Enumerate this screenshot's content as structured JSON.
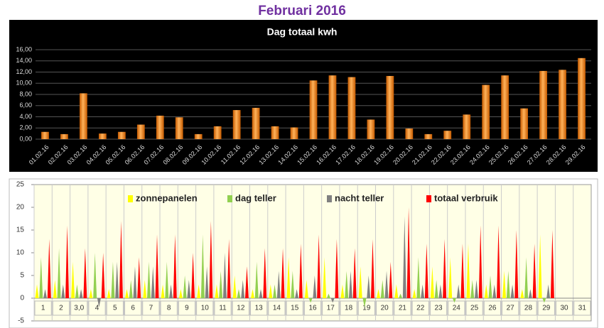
{
  "title": "Februari 2016",
  "chart_data": [
    {
      "type": "bar",
      "title": "Dag totaal kwh",
      "categories": [
        "01.02.16",
        "02.02.16",
        "03.02.16",
        "04.02.16",
        "05.02.16",
        "06.02.16",
        "07.02.16",
        "08.02.16",
        "09.02.16",
        "10.02.16",
        "11.02.16",
        "12.02.16",
        "13.02.16",
        "14.02.16",
        "15.02.16",
        "16.02.16",
        "17.02.16",
        "18.02.16",
        "19.02.16",
        "20.02.16",
        "21.02.16",
        "22.02.16",
        "23.02.16",
        "24.02.16",
        "25.02.16",
        "26.02.16",
        "27.02.16",
        "28.02.16",
        "29.02.16"
      ],
      "values": [
        1.3,
        0.9,
        8.2,
        1.0,
        1.3,
        2.6,
        4.2,
        3.9,
        0.9,
        2.3,
        5.2,
        5.6,
        2.3,
        2.1,
        10.5,
        11.4,
        11.1,
        3.5,
        11.3,
        1.9,
        0.9,
        1.5,
        4.4,
        9.7,
        11.4,
        5.5,
        12.2,
        12.4,
        14.5
      ],
      "color": "#f28c1e",
      "ylim": [
        0,
        16
      ],
      "yticks": [
        {
          "value": 0,
          "label": "0,00"
        },
        {
          "value": 2,
          "label": "2,00"
        },
        {
          "value": 4,
          "label": "4,00"
        },
        {
          "value": 6,
          "label": "6,00"
        },
        {
          "value": 8,
          "label": "8,00"
        },
        {
          "value": 10,
          "label": "10,00"
        },
        {
          "value": 12,
          "label": "12,00"
        },
        {
          "value": 14,
          "label": "14,00"
        },
        {
          "value": 16,
          "label": "16,00"
        }
      ],
      "grid": true
    },
    {
      "type": "spike",
      "categories": [
        "1",
        "2",
        "3,0",
        "4",
        "5",
        "6",
        "7",
        "8",
        "9",
        "10",
        "11",
        "12",
        "13",
        "14",
        "15",
        "16",
        "17",
        "18",
        "19",
        "20",
        "21",
        "22",
        "23",
        "24",
        "25",
        "26",
        "27",
        "28",
        "29",
        "30",
        "31"
      ],
      "series": [
        {
          "name": "zonnepanelen",
          "color": "#ffff00",
          "values": [
            3,
            4,
            8,
            2,
            2,
            2,
            4,
            3,
            2,
            3,
            3,
            5,
            2,
            3,
            9,
            4,
            9,
            3,
            7,
            2,
            3,
            2,
            7,
            9,
            12,
            3,
            6,
            2,
            14,
            null,
            null
          ]
        },
        {
          "name": "dag teller",
          "color": "#92d050",
          "values": [
            9,
            11,
            3,
            10,
            8,
            4,
            8,
            8,
            5,
            14,
            6,
            2,
            8,
            3,
            6,
            -1,
            1,
            6,
            -2,
            4,
            1,
            9,
            4,
            -1,
            4,
            5,
            6,
            9,
            -1,
            null,
            null
          ]
        },
        {
          "name": "nacht teller",
          "color": "#808080",
          "values": [
            2,
            3,
            2,
            -2,
            8,
            7,
            7,
            3,
            4,
            7,
            10,
            4,
            2,
            6,
            2,
            5,
            -1,
            6,
            5,
            6,
            18,
            3,
            3,
            3,
            4,
            3,
            3,
            2,
            3,
            null,
            null
          ]
        },
        {
          "name": "totaal verbruik",
          "color": "#ff0000",
          "values": [
            13,
            16,
            11,
            10,
            17,
            9,
            14,
            14,
            10,
            17,
            13,
            7,
            11,
            11,
            12,
            14,
            13,
            11,
            13,
            8,
            20,
            12,
            13,
            12,
            16,
            16,
            15,
            12,
            15,
            null,
            null
          ]
        }
      ],
      "ylim": [
        -5,
        25
      ],
      "yticks": [
        -5,
        0,
        5,
        10,
        15,
        20,
        25
      ],
      "grid": true,
      "legend": "top"
    }
  ]
}
